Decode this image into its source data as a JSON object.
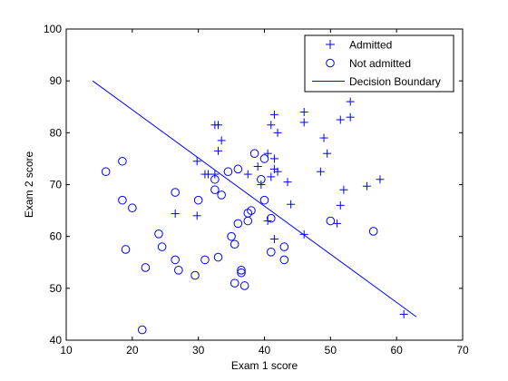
{
  "chart_data": {
    "type": "scatter",
    "title": "",
    "xlabel": "Exam 1 score",
    "ylabel": "Exam 2 score",
    "xlim": [
      10,
      70
    ],
    "ylim": [
      40,
      100
    ],
    "xticks": [
      10,
      20,
      30,
      40,
      50,
      60,
      70
    ],
    "yticks": [
      40,
      50,
      60,
      70,
      80,
      90,
      100
    ],
    "grid": false,
    "legend_position": "top-right",
    "colors": {
      "marker": "#0000ff",
      "line": "#0000ff",
      "axes": "#000000"
    },
    "series": [
      {
        "name": "Admitted",
        "marker": "plus",
        "points": [
          [
            61.1,
            45.0
          ],
          [
            46.0,
            60.4
          ],
          [
            29.8,
            64.0
          ],
          [
            26.5,
            64.4
          ],
          [
            44.0,
            66.2
          ],
          [
            51.5,
            66.0
          ],
          [
            40.5,
            63.0
          ],
          [
            41.5,
            59.5
          ],
          [
            52.0,
            69.0
          ],
          [
            55.5,
            69.7
          ],
          [
            57.5,
            71.0
          ],
          [
            51.0,
            62.5
          ],
          [
            43.5,
            70.5
          ],
          [
            48.5,
            72.5
          ],
          [
            42.0,
            72.5
          ],
          [
            39.0,
            73.5
          ],
          [
            40.5,
            76.0
          ],
          [
            41.5,
            75.0
          ],
          [
            41.0,
            71.5
          ],
          [
            41.5,
            73.0
          ],
          [
            49.5,
            76.0
          ],
          [
            49.0,
            79.0
          ],
          [
            42.0,
            80.0
          ],
          [
            41.0,
            81.5
          ],
          [
            41.5,
            83.5
          ],
          [
            46.0,
            82.0
          ],
          [
            46.0,
            84.0
          ],
          [
            51.5,
            82.5
          ],
          [
            53.0,
            83.0
          ],
          [
            53.0,
            86.0
          ],
          [
            32.5,
            81.5
          ],
          [
            33.0,
            81.5
          ],
          [
            33.5,
            78.5
          ],
          [
            33.0,
            76.5
          ],
          [
            31.0,
            72.0
          ],
          [
            31.5,
            72.0
          ],
          [
            32.5,
            72.0
          ],
          [
            29.8,
            74.5
          ],
          [
            37.5,
            72.0
          ],
          [
            39.5,
            70.0
          ]
        ]
      },
      {
        "name": "Not admitted",
        "marker": "circle",
        "points": [
          [
            21.5,
            42.0
          ],
          [
            22.0,
            54.0
          ],
          [
            19.0,
            57.5
          ],
          [
            24.5,
            58.0
          ],
          [
            24.0,
            60.5
          ],
          [
            26.5,
            55.5
          ],
          [
            27.0,
            53.5
          ],
          [
            29.5,
            52.5
          ],
          [
            31.0,
            55.5
          ],
          [
            33.0,
            56.0
          ],
          [
            35.5,
            51.0
          ],
          [
            36.5,
            53.0
          ],
          [
            36.5,
            53.5
          ],
          [
            37.0,
            50.5
          ],
          [
            35.5,
            58.5
          ],
          [
            35.0,
            60.0
          ],
          [
            36.0,
            62.5
          ],
          [
            37.5,
            63.0
          ],
          [
            37.5,
            64.5
          ],
          [
            38.0,
            65.0
          ],
          [
            40.0,
            67.0
          ],
          [
            41.0,
            63.5
          ],
          [
            41.0,
            57.0
          ],
          [
            43.0,
            55.5
          ],
          [
            43.0,
            58.0
          ],
          [
            50.0,
            63.0
          ],
          [
            56.5,
            61.0
          ],
          [
            30.0,
            67.0
          ],
          [
            32.5,
            69.0
          ],
          [
            33.5,
            68.0
          ],
          [
            26.5,
            68.5
          ],
          [
            20.0,
            65.5
          ],
          [
            18.5,
            67.0
          ],
          [
            16.0,
            72.5
          ],
          [
            18.5,
            74.5
          ],
          [
            32.5,
            71.0
          ],
          [
            34.5,
            72.5
          ],
          [
            36.0,
            73.0
          ],
          [
            38.5,
            76.0
          ],
          [
            40.0,
            75.0
          ],
          [
            39.5,
            71.0
          ]
        ]
      },
      {
        "name": "Decision Boundary",
        "marker": "line",
        "points": [
          [
            14,
            90.0
          ],
          [
            63,
            44.5
          ]
        ]
      }
    ]
  }
}
